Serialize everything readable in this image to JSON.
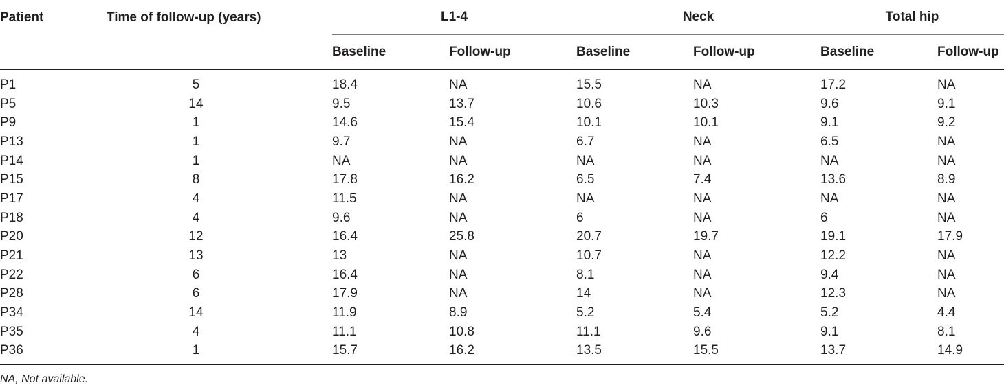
{
  "table": {
    "header": {
      "patient": "Patient",
      "time": "Time of follow-up (years)",
      "groups": [
        "L1-4",
        "Neck",
        "Total hip"
      ],
      "sub": [
        "Baseline",
        "Follow-up"
      ]
    },
    "rows": [
      [
        "P1",
        "5",
        "18.4",
        "NA",
        "15.5",
        "NA",
        "17.2",
        "NA"
      ],
      [
        "P5",
        "14",
        "9.5",
        "13.7",
        "10.6",
        "10.3",
        "9.6",
        "9.1"
      ],
      [
        "P9",
        "1",
        "14.6",
        "15.4",
        "10.1",
        "10.1",
        "9.1",
        "9.2"
      ],
      [
        "P13",
        "1",
        "9.7",
        "NA",
        "6.7",
        "NA",
        "6.5",
        "NA"
      ],
      [
        "P14",
        "1",
        "NA",
        "NA",
        "NA",
        "NA",
        "NA",
        "NA"
      ],
      [
        "P15",
        "8",
        "17.8",
        "16.2",
        "6.5",
        "7.4",
        "13.6",
        "8.9"
      ],
      [
        "P17",
        "4",
        "11.5",
        "NA",
        "NA",
        "NA",
        "NA",
        "NA"
      ],
      [
        "P18",
        "4",
        "9.6",
        "NA",
        "6",
        "NA",
        "6",
        "NA"
      ],
      [
        "P20",
        "12",
        "16.4",
        "25.8",
        "20.7",
        "19.7",
        "19.1",
        "17.9"
      ],
      [
        "P21",
        "13",
        "13",
        "NA",
        "10.7",
        "NA",
        "12.2",
        "NA"
      ],
      [
        "P22",
        "6",
        "16.4",
        "NA",
        "8.1",
        "NA",
        "9.4",
        "NA"
      ],
      [
        "P28",
        "6",
        "17.9",
        "NA",
        "14",
        "NA",
        "12.3",
        "NA"
      ],
      [
        "P34",
        "14",
        "11.9",
        "8.9",
        "5.2",
        "5.4",
        "5.2",
        "4.4"
      ],
      [
        "P35",
        "4",
        "11.1",
        "10.8",
        "11.1",
        "9.6",
        "9.1",
        "8.1"
      ],
      [
        "P36",
        "1",
        "15.7",
        "16.2",
        "13.5",
        "15.5",
        "13.7",
        "14.9"
      ]
    ]
  },
  "footnote": "NA, Not available."
}
